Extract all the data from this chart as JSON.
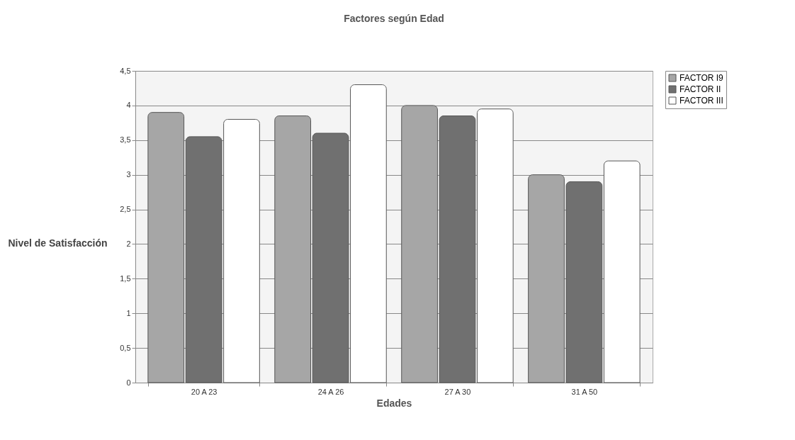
{
  "chart_data": {
    "type": "bar",
    "title": "Factores según Edad",
    "xlabel": "Edades",
    "ylabel": "Nivel de Satisfacción",
    "categories": [
      "20 A 23",
      "24 A 26",
      "27 A 30",
      "31 A 50"
    ],
    "series": [
      {
        "name": "FACTOR I9",
        "color": "#a6a6a6",
        "values": [
          3.9,
          3.85,
          4.0,
          3.0
        ]
      },
      {
        "name": "FACTOR II",
        "color": "#707070",
        "values": [
          3.55,
          3.6,
          3.85,
          2.9
        ]
      },
      {
        "name": "FACTOR III",
        "color": "#ffffff",
        "values": [
          3.8,
          4.3,
          3.95,
          3.2
        ]
      }
    ],
    "ylim": [
      0,
      4.5
    ],
    "yticks": [
      0,
      {
        "value": 0.5,
        "label": "0,5"
      },
      1,
      {
        "value": 1.5,
        "label": "1,5"
      },
      2,
      {
        "value": 2.5,
        "label": "2,5"
      },
      3,
      {
        "value": 3.5,
        "label": "3,5"
      },
      4,
      {
        "value": 4.5,
        "label": "4,5"
      }
    ],
    "grid": "y",
    "legend": "right"
  }
}
